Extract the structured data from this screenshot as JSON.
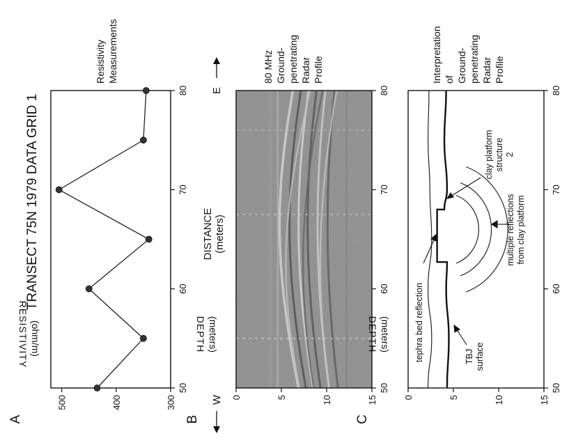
{
  "figure": {
    "title": "TRANSECT 75N 1979 DATA GRID 1",
    "x_axis_title": "DISTANCE",
    "x_axis_unit": "(meters)",
    "west_label": "W",
    "east_label": "E"
  },
  "panels": {
    "a": {
      "letter": "A",
      "caption_lines": [
        "Resistivity",
        "Measurements"
      ],
      "axis_label": "RESISTIVITY",
      "axis_unit": "(ohm/m)"
    },
    "b": {
      "letter": "B",
      "caption_lines": [
        "80 MHz",
        "Ground-",
        "penetrating",
        "Radar",
        "Profile"
      ],
      "axis_label": "DEPTH",
      "axis_unit": "(meters)"
    },
    "c": {
      "letter": "C",
      "caption_lines": [
        "Interpretation",
        "of",
        "Ground-",
        "penetrating",
        "Radar",
        "Profile"
      ],
      "axis_label": "DEPTH",
      "axis_unit": "(meters)",
      "annotations": {
        "tephra": "tephra bed reflection",
        "tbj_1": "TBJ",
        "tbj_2": "surface",
        "multi_1": "multiple reflections",
        "multi_2": "from clay platform",
        "clay_1": "clay platform",
        "clay_2": "structure",
        "clay_3": "2"
      }
    }
  },
  "chart_data": [
    {
      "type": "line",
      "panel": "A",
      "x": [
        50,
        55,
        60,
        65,
        70,
        75,
        80
      ],
      "y": [
        435,
        350,
        450,
        340,
        505,
        350,
        345
      ],
      "xlim": [
        50,
        80
      ],
      "ylim": [
        300,
        520
      ],
      "x_ticks": [
        50,
        60,
        70,
        80
      ],
      "y_ticks": [
        300,
        400,
        500
      ],
      "markers": true
    },
    {
      "type": "heatmap",
      "panel": "B",
      "xlim": [
        50,
        80
      ],
      "ylim": [
        0,
        15
      ],
      "x_ticks": [
        50,
        60,
        70,
        80
      ],
      "y_ticks": [
        0,
        5,
        10,
        15
      ],
      "colormap": "grayscale"
    },
    {
      "type": "line",
      "panel": "C",
      "xlim": [
        50,
        80
      ],
      "ylim": [
        0,
        15
      ],
      "x_ticks": [
        50,
        60,
        70,
        80
      ],
      "y_ticks": [
        0,
        5,
        10,
        15
      ],
      "tephra_x": [
        50,
        55,
        60,
        65,
        70,
        75,
        80
      ],
      "tephra_y": [
        2.2,
        2.6,
        2.2,
        2.6,
        2.4,
        2.2,
        2.3
      ],
      "tbj_x": [
        50,
        55,
        60,
        62.7,
        62.7,
        68,
        68,
        70,
        75,
        80
      ],
      "tbj_y": [
        4.3,
        4.5,
        4.2,
        4.3,
        3.2,
        3.2,
        4.0,
        4.3,
        4.0,
        4.2
      ],
      "arc_center_x": 66,
      "arc_center_y": 4,
      "arc_radii": [
        3.8,
        5.2,
        7.0
      ]
    }
  ]
}
